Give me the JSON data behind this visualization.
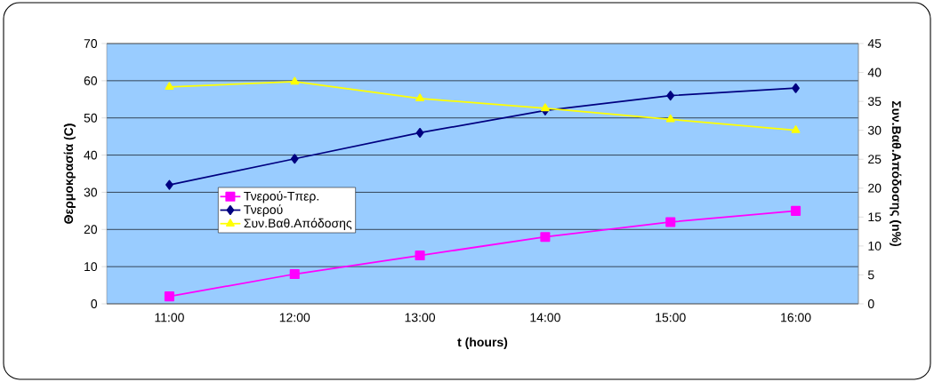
{
  "chart_data": {
    "type": "line",
    "xlabel": "t (hours)",
    "ylabel": "Θερμοκρασία (C)",
    "y2label": "Συν.Βαθ.Απόδοσης (n%)",
    "categories": [
      "11:00",
      "12:00",
      "13:00",
      "14:00",
      "15:00",
      "16:00"
    ],
    "series": [
      {
        "name": "Τνερού-Τπερ.",
        "color": "#ff00ff",
        "marker": "square",
        "values": [
          2,
          8,
          13,
          18,
          22,
          25
        ]
      },
      {
        "name": "Τνερού",
        "color": "#000080",
        "marker": "diamond",
        "values": [
          32,
          39,
          46,
          52,
          56,
          58
        ]
      },
      {
        "name": "Συν.Βαθ.Απόδοσης",
        "color": "#ffff00",
        "marker": "triangle",
        "axis": "y2",
        "values": [
          37.5,
          38.4,
          35.5,
          33.8,
          31.9,
          30.0
        ]
      }
    ],
    "ylim": [
      0,
      70
    ],
    "yticks": [
      0,
      10,
      20,
      30,
      40,
      50,
      60,
      70
    ],
    "y2lim": [
      0,
      45
    ],
    "y2ticks": [
      0,
      5,
      10,
      15,
      20,
      25,
      30,
      35,
      40,
      45
    ],
    "grid": "y",
    "legend": "left"
  }
}
